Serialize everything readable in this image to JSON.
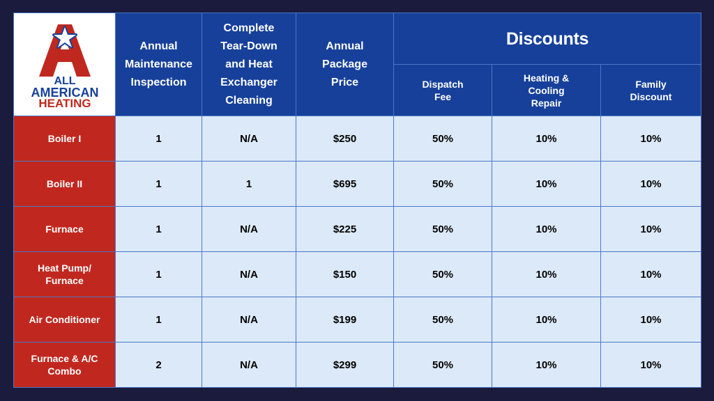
{
  "logo": {
    "line1": "ALL",
    "line2": "AMERICAN",
    "line3": "HEATING"
  },
  "header": {
    "annual_maintenance": [
      "Annual",
      "Maintenance",
      "Inspection"
    ],
    "teardown": [
      "Complete",
      "Tear-Down",
      "and Heat",
      "Exchanger",
      "Cleaning"
    ],
    "package_price": [
      "Annual",
      "Package",
      "Price"
    ],
    "discounts": "Discounts",
    "dispatch_fee": [
      "Dispatch",
      "Fee"
    ],
    "heating_cooling": [
      "Heating &",
      "Cooling",
      "Repair"
    ],
    "family_discount": [
      "Family",
      "Discount"
    ]
  },
  "rows": [
    {
      "label": [
        "Boiler I"
      ],
      "inspection": "1",
      "teardown": "N/A",
      "price": "$250",
      "dispatch": "50%",
      "repair": "10%",
      "family": "10%"
    },
    {
      "label": [
        "Boiler II"
      ],
      "inspection": "1",
      "teardown": "1",
      "price": "$695",
      "dispatch": "50%",
      "repair": "10%",
      "family": "10%"
    },
    {
      "label": [
        "Furnace"
      ],
      "inspection": "1",
      "teardown": "N/A",
      "price": "$225",
      "dispatch": "50%",
      "repair": "10%",
      "family": "10%"
    },
    {
      "label": [
        "Heat Pump/",
        "Furnace"
      ],
      "inspection": "1",
      "teardown": "N/A",
      "price": "$150",
      "dispatch": "50%",
      "repair": "10%",
      "family": "10%"
    },
    {
      "label": [
        "Air Conditioner"
      ],
      "inspection": "1",
      "teardown": "N/A",
      "price": "$199",
      "dispatch": "50%",
      "repair": "10%",
      "family": "10%"
    },
    {
      "label": [
        "Furnace & A/C",
        "Combo"
      ],
      "inspection": "2",
      "teardown": "N/A",
      "price": "$299",
      "dispatch": "50%",
      "repair": "10%",
      "family": "10%"
    }
  ],
  "colors": {
    "background": "#1a1b3d",
    "header_blue": "#17409a",
    "row_red": "#c0281f",
    "cell_light": "#dce9f8",
    "grid": "#4a78c8"
  }
}
